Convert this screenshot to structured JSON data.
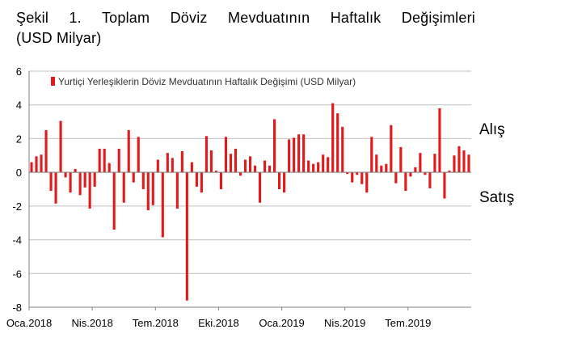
{
  "title_line1": "Şekil 1. Toplam Döviz Mevduatının Haftalık Değişimleri",
  "title_line2": "(USD Milyar)",
  "side_labels": {
    "buy": "Alış",
    "sell": "Satış"
  },
  "colors": {
    "bar": "#e31a1c",
    "grid": "#bfbfbf",
    "axis": "#808080"
  },
  "chart_data": {
    "type": "bar",
    "title": "Şekil 1. Toplam Döviz Mevduatının Haftalık Değişimleri (USD Milyar)",
    "legend": "Yurtiçi Yerleşiklerin Döviz Mevduatının Haftalık Değişimi (USD Milyar)",
    "legend_position": "top",
    "grid": true,
    "ylim": [
      -8,
      6
    ],
    "yticks": [
      "6",
      "4",
      "2",
      "0",
      "-2",
      "-4",
      "-6",
      "-8"
    ],
    "xtick_labels": [
      "Oca.2018",
      "Nis.2018",
      "Tem.2018",
      "Eki.2018",
      "Oca.2019",
      "Nis.2019",
      "Tem.2019"
    ],
    "xtick_weeks": [
      0,
      13,
      26,
      39,
      52,
      65,
      78
    ],
    "series": [
      {
        "name": "Yurtiçi Yerleşiklerin Döviz Mevduatının Haftalık Değişimi (USD Milyar)",
        "values": [
          0.6,
          0.95,
          1.05,
          2.5,
          -1.1,
          -1.85,
          3.05,
          -0.3,
          -1.2,
          0.2,
          -1.35,
          -0.9,
          -2.15,
          -0.85,
          1.4,
          1.4,
          0.55,
          -3.4,
          1.4,
          -1.8,
          2.5,
          -0.6,
          2.1,
          -1.0,
          -2.25,
          -1.95,
          0.75,
          -3.85,
          1.15,
          0.85,
          -2.15,
          1.25,
          -7.6,
          0.6,
          -0.85,
          -1.2,
          2.15,
          1.3,
          0.1,
          -1.0,
          2.1,
          1.1,
          1.4,
          -0.2,
          0.75,
          0.95,
          0.4,
          -1.8,
          0.7,
          0.4,
          3.15,
          -1.0,
          -1.2,
          1.95,
          2.05,
          2.25,
          2.25,
          0.7,
          0.5,
          0.6,
          1.05,
          0.9,
          4.1,
          3.5,
          2.7,
          -0.1,
          -0.6,
          -0.15,
          -0.7,
          -1.2,
          2.1,
          1.05,
          0.4,
          0.5,
          2.8,
          -0.65,
          1.5,
          -1.1,
          -0.25,
          0.3,
          1.15,
          -0.15,
          -0.95,
          1.1,
          3.8,
          -1.55,
          0.1,
          1.0,
          1.55,
          1.3,
          1.05
        ]
      }
    ]
  }
}
